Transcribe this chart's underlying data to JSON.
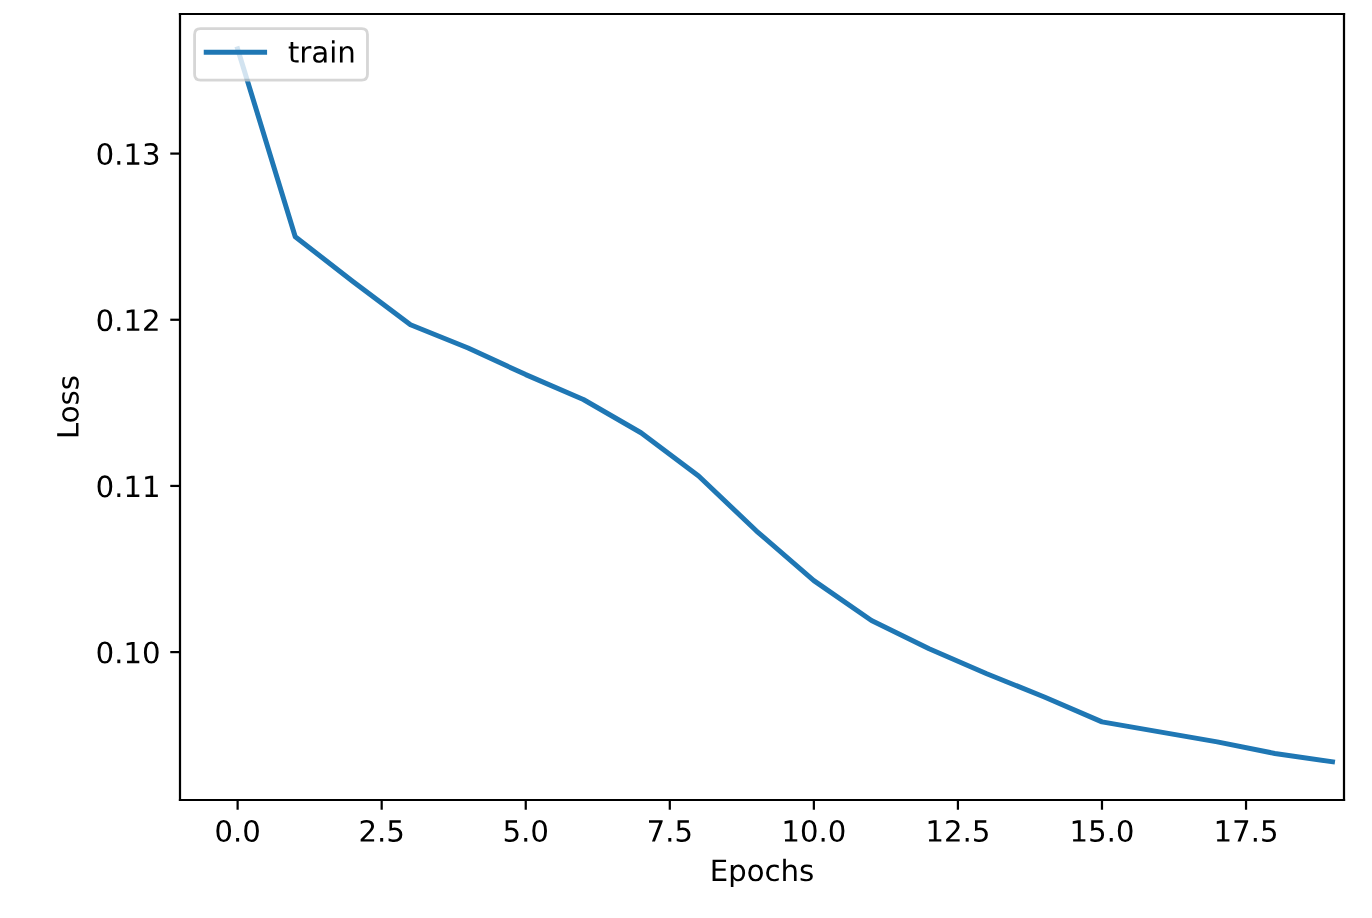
{
  "chart_data": {
    "type": "line",
    "xlabel": "Epochs",
    "ylabel": "Loss",
    "x": [
      0,
      1,
      2,
      3,
      4,
      5,
      6,
      7,
      8,
      9,
      10,
      11,
      12,
      13,
      14,
      15,
      16,
      17,
      18,
      19
    ],
    "series": [
      {
        "name": "train",
        "color": "#1f77b4",
        "values": [
          0.1363,
          0.125,
          0.1223,
          0.1197,
          0.1183,
          0.1167,
          0.1152,
          0.1132,
          0.1106,
          0.1073,
          0.1043,
          0.1019,
          0.1002,
          0.0987,
          0.0973,
          0.0958,
          0.0952,
          0.0946,
          0.0939,
          0.0934
        ]
      }
    ],
    "xlim": [
      -1.0,
      19.2
    ],
    "ylim": [
      0.0911,
      0.1384
    ],
    "xticks": [
      {
        "value": 0,
        "label": "0.0"
      },
      {
        "value": 2.5,
        "label": "2.5"
      },
      {
        "value": 5,
        "label": "5.0"
      },
      {
        "value": 7.5,
        "label": "7.5"
      },
      {
        "value": 10,
        "label": "10.0"
      },
      {
        "value": 12.5,
        "label": "12.5"
      },
      {
        "value": 15,
        "label": "15.0"
      },
      {
        "value": 17.5,
        "label": "17.5"
      }
    ],
    "yticks": [
      {
        "value": 0.1,
        "label": "0.10"
      },
      {
        "value": 0.11,
        "label": "0.11"
      },
      {
        "value": 0.12,
        "label": "0.12"
      },
      {
        "value": 0.13,
        "label": "0.13"
      }
    ],
    "legend": "top left",
    "grid": false
  }
}
